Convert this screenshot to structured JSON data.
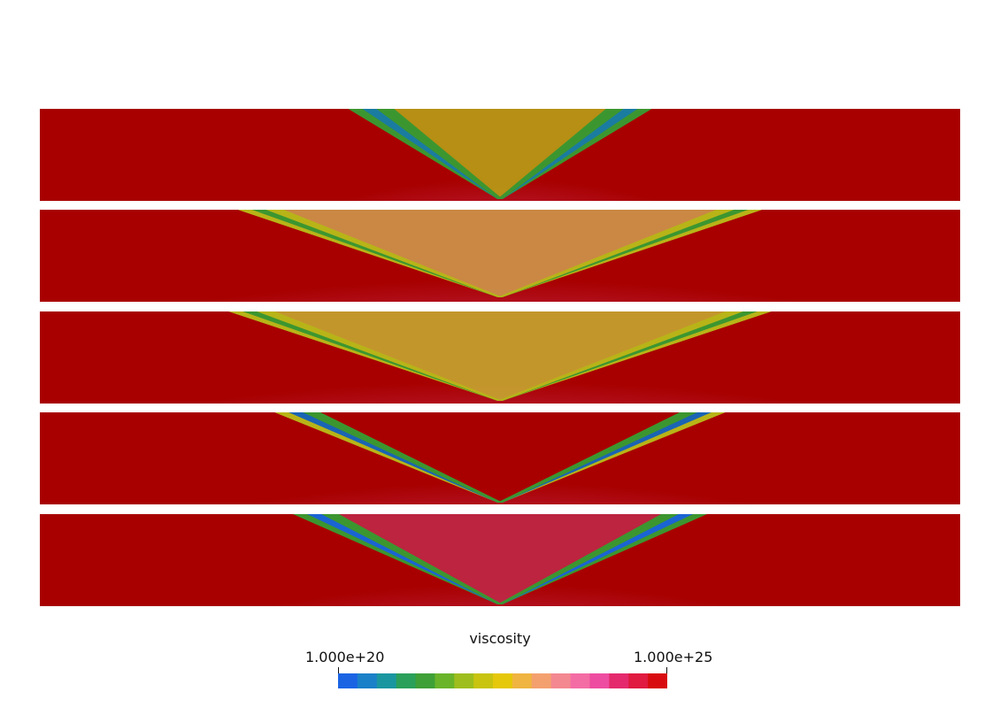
{
  "colorbar": {
    "title": "viscosity",
    "min_label": "1.000e+20",
    "max_label": "1.000e+25",
    "colors": [
      "#1a64e4",
      "#1a80c8",
      "#1a96a0",
      "#2aa05a",
      "#3ea036",
      "#6ab42a",
      "#9ebe1e",
      "#c8c410",
      "#e6c80a",
      "#f0b440",
      "#f4a06e",
      "#f48890",
      "#f46ca4",
      "#ee4ca0",
      "#e42a6c",
      "#e01a40",
      "#d80c10"
    ]
  },
  "panels": [
    {
      "name": "panel-1",
      "bg": "#a80000",
      "pink": "#c83c6c",
      "apex_y": 0.98,
      "spread": 0.14,
      "band_colors": [
        "#3c9630",
        "#1a7ca0",
        "#3c9630"
      ],
      "fill": "#b8a818"
    },
    {
      "name": "panel-2",
      "bg": "#a80000",
      "pink": "#d24e78",
      "apex_y": 0.95,
      "spread": 0.26,
      "band_colors": [
        "#b8b418",
        "#3c9630",
        "#b8b418"
      ],
      "fill": "#d0a050"
    },
    {
      "name": "panel-3",
      "bg": "#a80000",
      "pink": "#d24e78",
      "apex_y": 0.97,
      "spread": 0.27,
      "band_colors": [
        "#b8b418",
        "#3c9630",
        "#b8b418"
      ],
      "fill": "#c8b034"
    },
    {
      "name": "panel-4",
      "bg": "#a80000",
      "pink": "#d24e78",
      "apex_y": 0.98,
      "spread": 0.22,
      "band_colors": [
        "#b8b418",
        "#1a64b4",
        "#3c9630"
      ],
      "fill": "#a80000"
    },
    {
      "name": "panel-5",
      "bg": "#a80000",
      "pink": "#d24e78",
      "apex_y": 0.98,
      "spread": 0.2,
      "band_colors": [
        "#3c9630",
        "#1a64d4",
        "#3c9630"
      ],
      "fill": "#c02a4a"
    }
  ]
}
